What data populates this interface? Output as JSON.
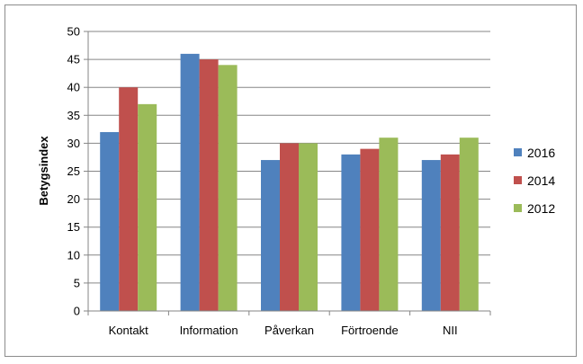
{
  "chart_data": {
    "type": "bar",
    "title": "",
    "xlabel": "",
    "ylabel": "Betygsindex",
    "ylim": [
      0,
      50
    ],
    "yticks": [
      0,
      5,
      10,
      15,
      20,
      25,
      30,
      35,
      40,
      45,
      50
    ],
    "categories": [
      "Kontakt",
      "Information",
      "Påverkan",
      "Förtroende",
      "NII"
    ],
    "series": [
      {
        "name": "2016",
        "color": "#4f81bd",
        "values": [
          32,
          46,
          27,
          28,
          27
        ]
      },
      {
        "name": "2014",
        "color": "#c0504d",
        "values": [
          40,
          45,
          30,
          29,
          28
        ]
      },
      {
        "name": "2012",
        "color": "#9bbb59",
        "values": [
          37,
          44,
          30,
          31,
          31
        ]
      }
    ],
    "grid": true,
    "legend": "right"
  }
}
